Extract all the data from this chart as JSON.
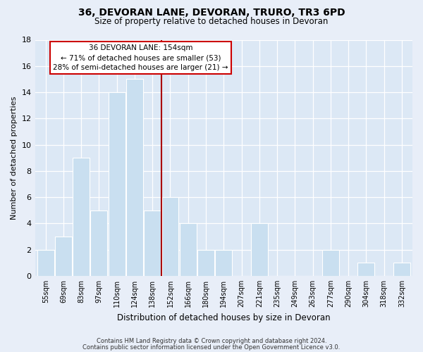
{
  "title": "36, DEVORAN LANE, DEVORAN, TRURO, TR3 6PD",
  "subtitle": "Size of property relative to detached houses in Devoran",
  "xlabel": "Distribution of detached houses by size in Devoran",
  "ylabel": "Number of detached properties",
  "bar_labels": [
    "55sqm",
    "69sqm",
    "83sqm",
    "97sqm",
    "110sqm",
    "124sqm",
    "138sqm",
    "152sqm",
    "166sqm",
    "180sqm",
    "194sqm",
    "207sqm",
    "221sqm",
    "235sqm",
    "249sqm",
    "263sqm",
    "277sqm",
    "290sqm",
    "304sqm",
    "318sqm",
    "332sqm"
  ],
  "bar_values": [
    2,
    3,
    9,
    5,
    14,
    15,
    5,
    6,
    4,
    2,
    2,
    0,
    4,
    0,
    0,
    0,
    2,
    0,
    1,
    0,
    1
  ],
  "highlight_bar_index": 7,
  "bar_color": "#c9dff0",
  "bar_edge_color": "#a8c8e8",
  "highlight_line_color": "#aa0000",
  "ylim": [
    0,
    18
  ],
  "yticks": [
    0,
    2,
    4,
    6,
    8,
    10,
    12,
    14,
    16,
    18
  ],
  "annotation_title": "36 DEVORAN LANE: 154sqm",
  "annotation_line1": "← 71% of detached houses are smaller (53)",
  "annotation_line2": "28% of semi-detached houses are larger (21) →",
  "annotation_box_color": "#ffffff",
  "annotation_box_edge_color": "#cc0000",
  "footer_line1": "Contains HM Land Registry data © Crown copyright and database right 2024.",
  "footer_line2": "Contains public sector information licensed under the Open Government Licence v3.0.",
  "background_color": "#e8eef8",
  "plot_bg_color": "#dce8f5"
}
